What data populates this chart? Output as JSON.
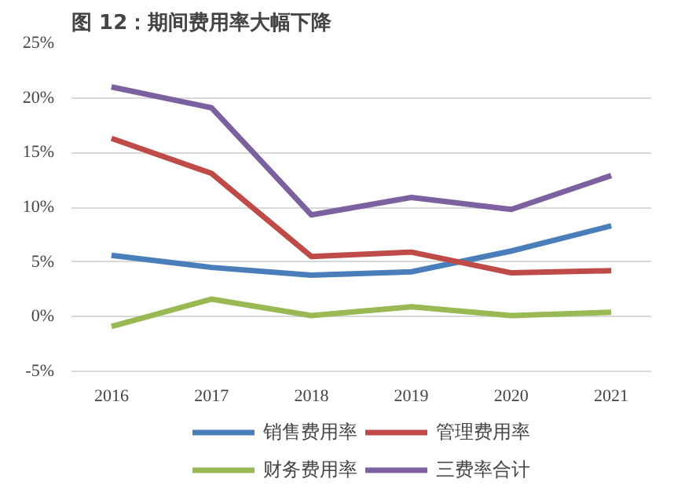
{
  "chart_data": {
    "type": "line",
    "title": "图 12：期间费用率大幅下降",
    "categories": [
      "2016",
      "2017",
      "2018",
      "2019",
      "2020",
      "2021"
    ],
    "series": [
      {
        "name": "销售费用率",
        "color": "#4a7ebb",
        "values": [
          5.6,
          4.5,
          3.8,
          4.1,
          6.0,
          8.3
        ]
      },
      {
        "name": "管理费用率",
        "color": "#be4b48",
        "values": [
          16.3,
          13.1,
          5.5,
          5.9,
          4.0,
          4.2
        ]
      },
      {
        "name": "财务费用率",
        "color": "#98b954",
        "values": [
          -0.9,
          1.6,
          0.1,
          0.9,
          0.1,
          0.4
        ]
      },
      {
        "name": "三费率合计",
        "color": "#7d60a0",
        "values": [
          21.0,
          19.1,
          9.3,
          10.9,
          9.8,
          12.9
        ]
      }
    ],
    "ylim": [
      -5,
      25
    ],
    "yticks": [
      {
        "value": -5,
        "label": "-5%"
      },
      {
        "value": 0,
        "label": "0%"
      },
      {
        "value": 5,
        "label": "5%"
      },
      {
        "value": 10,
        "label": "10%"
      },
      {
        "value": 15,
        "label": "15%"
      },
      {
        "value": 20,
        "label": "20%"
      },
      {
        "value": 25,
        "label": "25%"
      }
    ],
    "grid": "y",
    "legend": "bottom",
    "marker": "none",
    "line_style": "solid"
  }
}
